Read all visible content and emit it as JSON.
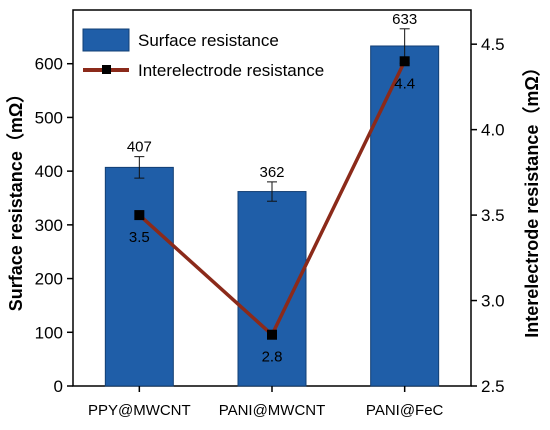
{
  "chart_data": {
    "type": "bar",
    "categories": [
      "PPY@MWCNT",
      "PANI@MWCNT",
      "PANI@FeC"
    ],
    "series": [
      {
        "name": "Surface resistance",
        "type": "bar",
        "axis": "left",
        "values": [
          407,
          362,
          633
        ],
        "errors": [
          20,
          18,
          32
        ],
        "labels": [
          "407",
          "362",
          "633"
        ],
        "color": "#1f5ea8"
      },
      {
        "name": "Interelectrode resistance",
        "type": "line",
        "axis": "right",
        "values": [
          3.5,
          2.8,
          4.4
        ],
        "labels": [
          "3.5",
          "2.8",
          "4.4"
        ],
        "color": "#8b2a1a",
        "marker_color": "#000000"
      }
    ],
    "ylabel": "Surface resistance（mΩ）",
    "y2label": "Interelectrode resistance（mΩ）",
    "ylim": [
      0,
      700
    ],
    "y2lim": [
      2.5,
      4.7
    ],
    "yticks": [
      "0",
      "100",
      "200",
      "300",
      "400",
      "500",
      "600"
    ],
    "y2ticks": [
      "2.5",
      "3.0",
      "3.5",
      "4.0",
      "4.5"
    ],
    "legend_position": "top-left",
    "grid": false
  }
}
